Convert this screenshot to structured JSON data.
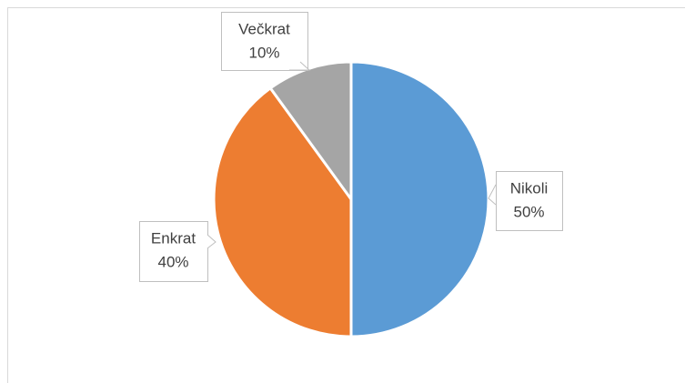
{
  "chart_data": {
    "type": "pie",
    "categories": [
      "Nikoli",
      "Enkrat",
      "Večkrat"
    ],
    "values": [
      50,
      40,
      10
    ],
    "value_labels": [
      "50%",
      "40%",
      "10%"
    ],
    "colors": [
      "#5b9bd5",
      "#ed7d31",
      "#a5a5a5"
    ]
  }
}
